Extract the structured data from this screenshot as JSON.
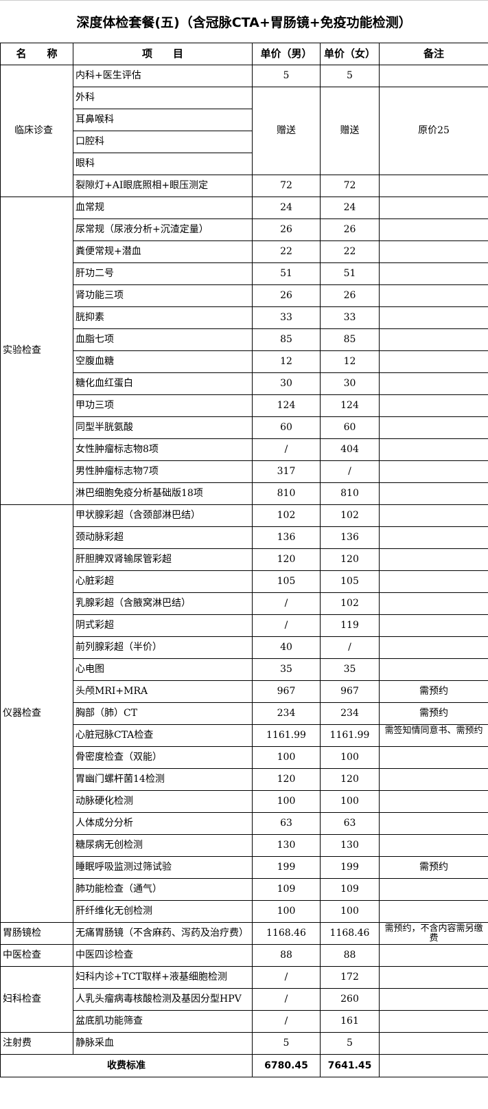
{
  "title": "深度体检套餐(五)（含冠脉CTA+胃肠镜+免疫功能检测）",
  "headers": {
    "name": "名　　称",
    "item": "项　　目",
    "male": "单价（男）",
    "female": "单价（女）",
    "note": "备注"
  },
  "clinical": {
    "category": "临床诊查",
    "first": {
      "item": "内科+医生评估",
      "male": "5",
      "female": "5"
    },
    "gift_items": [
      "外科",
      "耳鼻喉科",
      "口腔科",
      "眼科"
    ],
    "gift_male": "赠送",
    "gift_female": "赠送",
    "gift_note": "原价25",
    "last": {
      "item": "裂隙灯+AI眼底照相+眼压测定",
      "male": "72",
      "female": "72"
    }
  },
  "sections": [
    {
      "category": "实验检查",
      "rows": [
        {
          "item": "血常规",
          "male": "24",
          "female": "24",
          "note": ""
        },
        {
          "item": "尿常规（尿液分析+沉渣定量）",
          "male": "26",
          "female": "26",
          "note": ""
        },
        {
          "item": "粪便常规+潜血",
          "male": "22",
          "female": "22",
          "note": ""
        },
        {
          "item": "肝功二号",
          "male": "51",
          "female": "51",
          "note": ""
        },
        {
          "item": "肾功能三项",
          "male": "26",
          "female": "26",
          "note": ""
        },
        {
          "item": "胱抑素",
          "male": "33",
          "female": "33",
          "note": ""
        },
        {
          "item": "血脂七项",
          "male": "85",
          "female": "85",
          "note": ""
        },
        {
          "item": "空腹血糖",
          "male": "12",
          "female": "12",
          "note": ""
        },
        {
          "item": "糖化血红蛋白",
          "male": "30",
          "female": "30",
          "note": ""
        },
        {
          "item": "甲功三项",
          "male": "124",
          "female": "124",
          "note": ""
        },
        {
          "item": "同型半胱氨酸",
          "male": "60",
          "female": "60",
          "note": ""
        },
        {
          "item": "女性肿瘤标志物8项",
          "male": "/",
          "female": "404",
          "note": ""
        },
        {
          "item": "男性肿瘤标志物7项",
          "male": "317",
          "female": "/",
          "note": ""
        },
        {
          "item": "淋巴细胞免疫分析基础版18项",
          "male": "810",
          "female": "810",
          "note": ""
        }
      ]
    },
    {
      "category": "仪器检查",
      "rows": [
        {
          "item": "甲状腺彩超（含颈部淋巴结）",
          "male": "102",
          "female": "102",
          "note": ""
        },
        {
          "item": "颈动脉彩超",
          "male": "136",
          "female": "136",
          "note": ""
        },
        {
          "item": "肝胆脾双肾输尿管彩超",
          "male": "120",
          "female": "120",
          "note": ""
        },
        {
          "item": "心脏彩超",
          "male": "105",
          "female": "105",
          "note": ""
        },
        {
          "item": "乳腺彩超（含腋窝淋巴结）",
          "male": "/",
          "female": "102",
          "note": ""
        },
        {
          "item": "阴式彩超",
          "male": "/",
          "female": "119",
          "note": ""
        },
        {
          "item": "前列腺彩超（半价）",
          "male": "40",
          "female": "/",
          "note": ""
        },
        {
          "item": "心电图",
          "male": "35",
          "female": "35",
          "note": ""
        },
        {
          "item": "头颅MRI+MRA",
          "male": "967",
          "female": "967",
          "note": "需预约"
        },
        {
          "item": "胸部（肺）CT",
          "male": "234",
          "female": "234",
          "note": "需预约"
        },
        {
          "item": "心脏冠脉CTA检查",
          "male": "1161.99",
          "female": "1161.99",
          "note": "需签知情同意书、需预约"
        },
        {
          "item": "骨密度检查（双能）",
          "male": "100",
          "female": "100",
          "note": ""
        },
        {
          "item": "胃幽门螺杆菌14检测",
          "male": "120",
          "female": "120",
          "note": ""
        },
        {
          "item": "动脉硬化检测",
          "male": "100",
          "female": "100",
          "note": ""
        },
        {
          "item": "人体成分分析",
          "male": "63",
          "female": "63",
          "note": ""
        },
        {
          "item": "糖尿病无创检测",
          "male": "130",
          "female": "130",
          "note": ""
        },
        {
          "item": "睡眠呼吸监测过筛试验",
          "male": "199",
          "female": "199",
          "note": "需预约"
        },
        {
          "item": "肺功能检查（通气）",
          "male": "109",
          "female": "109",
          "note": ""
        },
        {
          "item": "肝纤维化无创检测",
          "male": "100",
          "female": "100",
          "note": ""
        }
      ]
    },
    {
      "category": "胃肠镜检",
      "rows": [
        {
          "item": "无痛胃肠镜（不含麻药、泻药及治疗费）",
          "male": "1168.46",
          "female": "1168.46",
          "note": "需预约，不含内容需另缴费"
        }
      ]
    },
    {
      "category": "中医检查",
      "rows": [
        {
          "item": "中医四诊检查",
          "male": "88",
          "female": "88",
          "note": ""
        }
      ]
    },
    {
      "category": "妇科检查",
      "rows": [
        {
          "item": "妇科内诊+TCT取样+液基细胞检测",
          "male": "/",
          "female": "172",
          "note": ""
        },
        {
          "item": "人乳头瘤病毒核酸检测及基因分型HPV",
          "male": "/",
          "female": "260",
          "note": ""
        },
        {
          "item": "盆底肌功能筛查",
          "male": "/",
          "female": "161",
          "note": ""
        }
      ]
    },
    {
      "category": "注射费",
      "rows": [
        {
          "item": "静脉采血",
          "male": "5",
          "female": "5",
          "note": ""
        }
      ]
    }
  ],
  "total": {
    "label": "收费标准",
    "male": "6780.45",
    "female": "7641.45"
  }
}
